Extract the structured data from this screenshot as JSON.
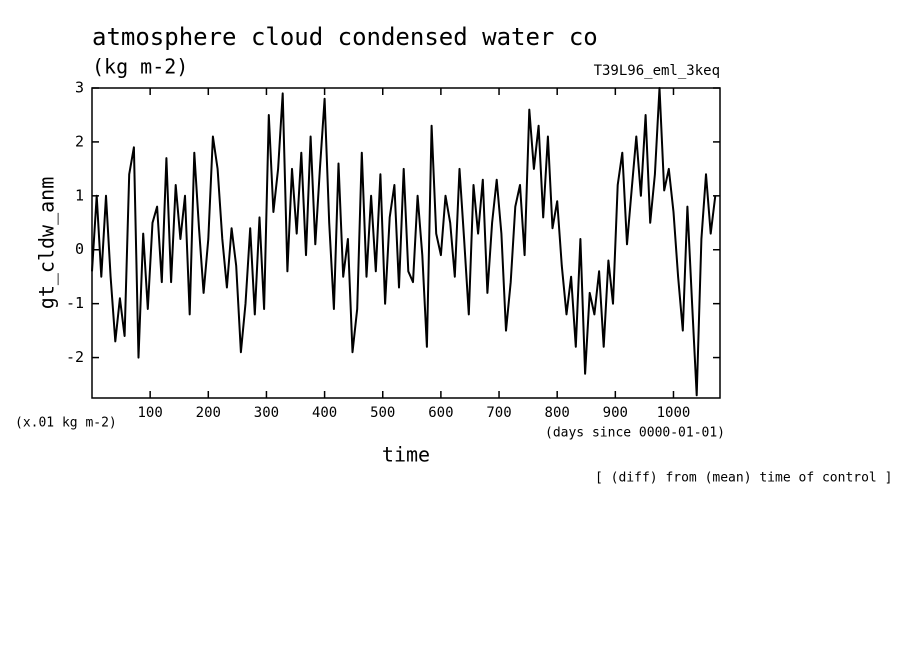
{
  "chart_data": {
    "type": "line",
    "title": "atmosphere cloud condensed water co",
    "units": "(kg m-2)",
    "experiment": "T39L96_eml_3keq",
    "y_label": "gt_cldw_anm",
    "y_scale_label": "(x.01 kg m-2)",
    "x_units": "(days since 0000-01-01)",
    "x_label": "time",
    "note": "[ (diff) from (mean) time of control ]",
    "xlim": [
      0,
      1080
    ],
    "ylim": [
      -2.75,
      3
    ],
    "xticks": [
      100,
      200,
      300,
      400,
      500,
      600,
      700,
      800,
      900,
      1000
    ],
    "yticks": [
      -2,
      -1,
      0,
      1,
      2,
      3
    ],
    "series": [
      {
        "color": "#000000",
        "x": [
          0,
          8,
          16,
          24,
          32,
          40,
          48,
          56,
          64,
          72,
          80,
          88,
          96,
          104,
          112,
          120,
          128,
          136,
          144,
          152,
          160,
          168,
          176,
          184,
          192,
          200,
          208,
          216,
          224,
          232,
          240,
          248,
          256,
          264,
          272,
          280,
          288,
          296,
          304,
          312,
          320,
          328,
          336,
          344,
          352,
          360,
          368,
          376,
          384,
          392,
          400,
          408,
          416,
          424,
          432,
          440,
          448,
          456,
          464,
          472,
          480,
          488,
          496,
          504,
          512,
          520,
          528,
          536,
          544,
          552,
          560,
          568,
          576,
          584,
          592,
          600,
          608,
          616,
          624,
          632,
          640,
          648,
          656,
          664,
          672,
          680,
          688,
          696,
          704,
          712,
          720,
          728,
          736,
          744,
          752,
          760,
          768,
          776,
          784,
          792,
          800,
          808,
          816,
          824,
          832,
          840,
          848,
          856,
          864,
          872,
          880,
          888,
          896,
          904,
          912,
          920,
          928,
          936,
          944,
          952,
          960,
          968,
          976,
          984,
          992,
          1000,
          1008,
          1016,
          1024,
          1032,
          1040,
          1048,
          1056,
          1064,
          1072
        ],
        "values": [
          -0.4,
          1.0,
          -0.5,
          1.0,
          -0.5,
          -1.7,
          -0.9,
          -1.6,
          1.4,
          1.9,
          -2.0,
          0.3,
          -1.1,
          0.5,
          0.8,
          -0.6,
          1.7,
          -0.6,
          1.2,
          0.2,
          1.0,
          -1.2,
          1.8,
          0.4,
          -0.8,
          0.2,
          2.1,
          1.5,
          0.2,
          -0.7,
          0.4,
          -0.3,
          -1.9,
          -1.0,
          0.4,
          -1.2,
          0.6,
          -1.1,
          2.5,
          0.7,
          1.5,
          2.9,
          -0.4,
          1.5,
          0.3,
          1.8,
          -0.1,
          2.1,
          0.1,
          1.5,
          2.8,
          0.5,
          -1.1,
          1.6,
          -0.5,
          0.2,
          -1.9,
          -1.1,
          1.8,
          -0.5,
          1.0,
          -0.4,
          1.4,
          -1.0,
          0.6,
          1.2,
          -0.7,
          1.5,
          -0.4,
          -0.6,
          1.0,
          -0.1,
          -1.8,
          2.3,
          0.3,
          -0.1,
          1.0,
          0.5,
          -0.5,
          1.5,
          0.2,
          -1.2,
          1.2,
          0.3,
          1.3,
          -0.8,
          0.5,
          1.3,
          0.3,
          -1.5,
          -0.6,
          0.8,
          1.2,
          -0.1,
          2.6,
          1.5,
          2.3,
          0.6,
          2.1,
          0.4,
          0.9,
          -0.3,
          -1.2,
          -0.5,
          -1.8,
          0.2,
          -2.3,
          -0.8,
          -1.2,
          -0.4,
          -1.8,
          -0.2,
          -1.0,
          1.2,
          1.8,
          0.1,
          1.1,
          2.1,
          1.0,
          2.5,
          0.5,
          1.4,
          3.0,
          1.1,
          1.5,
          0.7,
          -0.5,
          -1.5,
          0.8,
          -1.0,
          -2.7,
          0.2,
          1.4,
          0.3,
          1.0
        ]
      }
    ]
  }
}
